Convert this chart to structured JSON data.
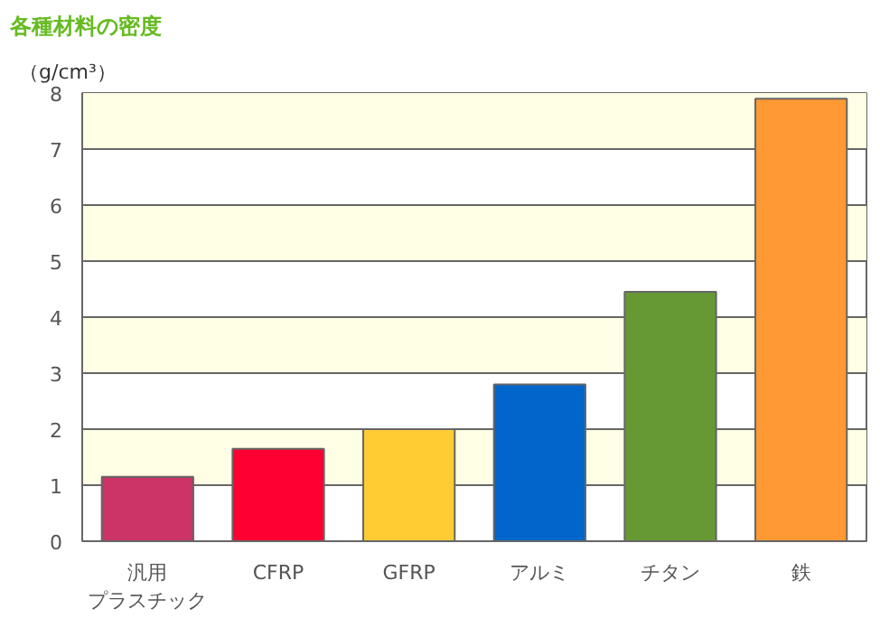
{
  "chart_data": {
    "type": "bar",
    "title": "各種材料の密度",
    "ylabel": "（g/cm³）",
    "categories": [
      "汎用プラスチック",
      "CFRP",
      "GFRP",
      "アルミ",
      "チタン",
      "鉄"
    ],
    "values": [
      1.15,
      1.65,
      2.0,
      2.8,
      4.45,
      7.9
    ],
    "colors": [
      "#cc3366",
      "#ff0033",
      "#ffcc33",
      "#0066cc",
      "#669933",
      "#ff9933"
    ],
    "ylim": [
      0,
      8
    ],
    "yticks": [
      0,
      1,
      2,
      3,
      4,
      5,
      6,
      7,
      8
    ],
    "grid": "y"
  }
}
